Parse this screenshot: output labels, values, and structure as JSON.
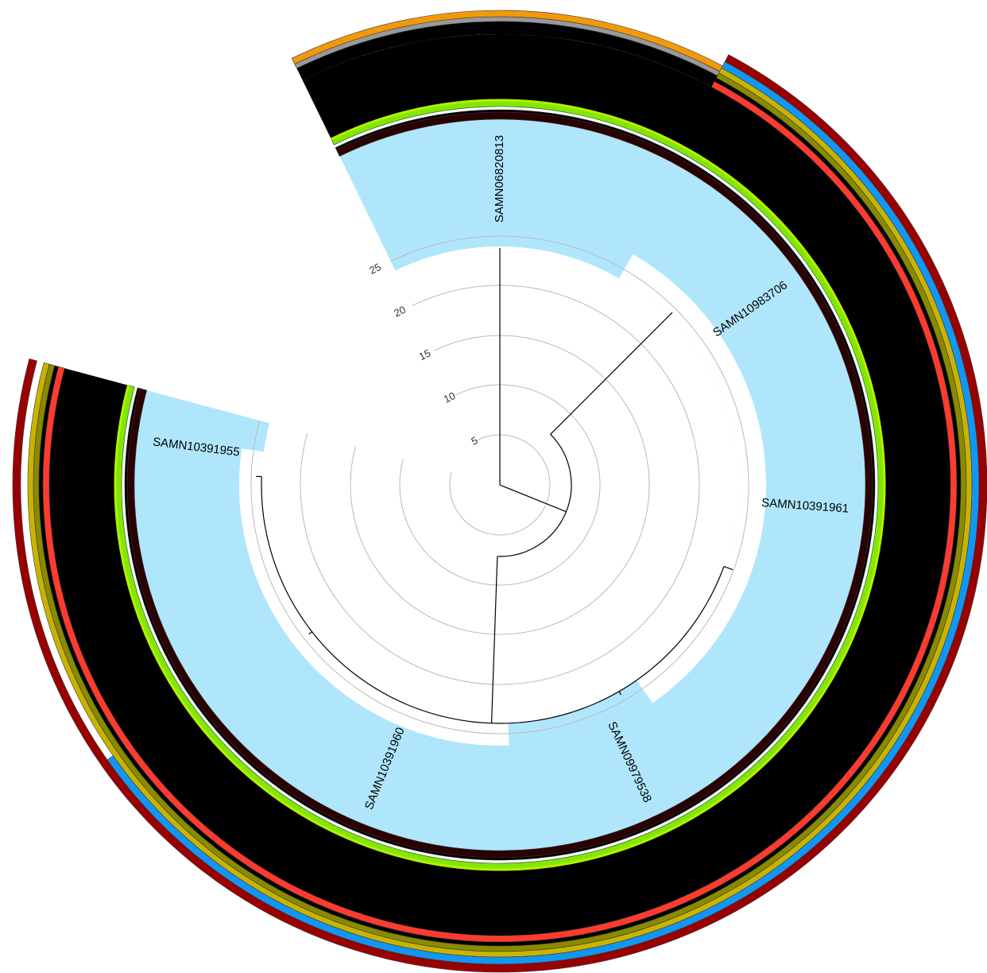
{
  "figure": {
    "type": "circular-phylogenetic-tree",
    "scale_labels": [
      "5",
      "10",
      "15",
      "20",
      "25"
    ],
    "leaves": [
      {
        "name": "SAMN06820813"
      },
      {
        "name": "SAMN10983706"
      },
      {
        "name": "SAMN10391961"
      },
      {
        "name": "SAMN09979538"
      },
      {
        "name": "SAMN10391960"
      },
      {
        "name": "SAMN10391955"
      }
    ],
    "colors": {
      "inner_band": "#b0e6fc",
      "dark_ring": "#2a0000",
      "green_ring": "#7fe800",
      "black_band": "#000000",
      "red_ring": "#ff3b2f",
      "olive_ring_dark": "#8a8a00",
      "olive_ring_light": "#c8b400",
      "blue_ring": "#1296f2",
      "outer_ring": "#990000",
      "gray_ring": "#999999",
      "orange_ring": "#f2990a",
      "yellow_green_ring": "#b9ee00",
      "gridline": "#b9b9b9",
      "branch": "#000000"
    }
  }
}
